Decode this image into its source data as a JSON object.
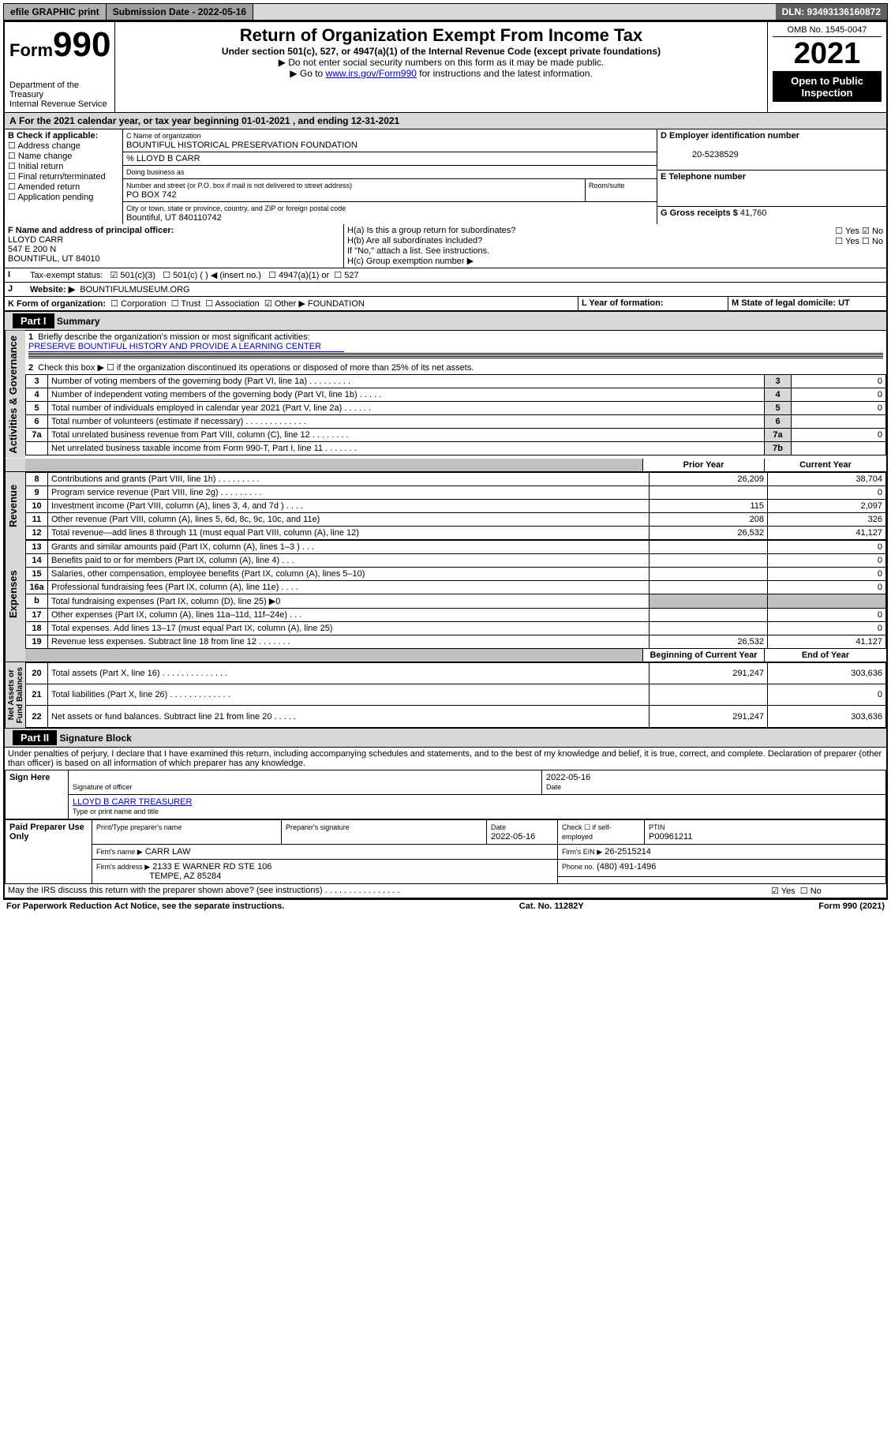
{
  "topbar": {
    "efile": "efile GRAPHIC print",
    "subdate_lbl": "Submission Date - 2022-05-16",
    "dln": "DLN: 93493136160872"
  },
  "header": {
    "form_prefix": "Form",
    "form_num": "990",
    "dept": "Department of the Treasury",
    "irs": "Internal Revenue Service",
    "title": "Return of Organization Exempt From Income Tax",
    "sub1": "Under section 501(c), 527, or 4947(a)(1) of the Internal Revenue Code (except private foundations)",
    "sub2": "Do not enter social security numbers on this form as it may be made public.",
    "sub3_pre": "Go to ",
    "sub3_link": "www.irs.gov/Form990",
    "sub3_post": " for instructions and the latest information.",
    "omb": "OMB No. 1545-0047",
    "year": "2021",
    "open": "Open to Public Inspection"
  },
  "A": {
    "text": "For the 2021 calendar year, or tax year beginning 01-01-2021   , and ending 12-31-2021"
  },
  "B": {
    "label": "B Check if applicable:",
    "opts": [
      "Address change",
      "Name change",
      "Initial return",
      "Final return/terminated",
      "Amended return",
      "Application pending"
    ]
  },
  "C": {
    "name_lbl": "C Name of organization",
    "name": "BOUNTIFUL HISTORICAL PRESERVATION FOUNDATION",
    "pct": "% LLOYD B CARR",
    "dba_lbl": "Doing business as",
    "addr_lbl": "Number and street (or P.O. box if mail is not delivered to street address)",
    "room_lbl": "Room/suite",
    "addr": "PO BOX 742",
    "city_lbl": "City or town, state or province, country, and ZIP or foreign postal code",
    "city": "Bountiful, UT  840110742"
  },
  "D": {
    "lbl": "D Employer identification number",
    "val": "20-5238529"
  },
  "E": {
    "lbl": "E Telephone number"
  },
  "G": {
    "lbl": "G Gross receipts $",
    "val": "41,760"
  },
  "F": {
    "lbl": "F Name and address of principal officer:",
    "name": "LLOYD CARR",
    "addr1": "547 E 200 N",
    "addr2": "BOUNTIFUL, UT  84010"
  },
  "H": {
    "a": "H(a)  Is this a group return for subordinates?",
    "b": "H(b)  Are all subordinates included?",
    "b_note": "If \"No,\" attach a list. See instructions.",
    "c": "H(c)  Group exemption number ▶",
    "yes": "Yes",
    "no": "No"
  },
  "I": {
    "lbl": "Tax-exempt status:",
    "c3": "501(c)(3)",
    "c": "501(c) (  ) ◀ (insert no.)",
    "a4947": "4947(a)(1) or",
    "s527": "527"
  },
  "J": {
    "lbl": "Website: ▶",
    "val": "BOUNTIFULMUSEUM.ORG"
  },
  "K": {
    "lbl": "K Form of organization:",
    "corp": "Corporation",
    "trust": "Trust",
    "assoc": "Association",
    "other": "Other ▶",
    "other_val": "FOUNDATION"
  },
  "L": {
    "lbl": "L Year of formation:"
  },
  "M": {
    "lbl": "M State of legal domicile: UT"
  },
  "part1": {
    "hdr": "Part I",
    "title": "Summary"
  },
  "gov": {
    "l1": "Briefly describe the organization's mission or most significant activities:",
    "l1v": "PRESERVE BOUNTIFUL HISTORY AND PROVIDE A LEARNING CENTER",
    "l2": "Check this box ▶ ☐  if the organization discontinued its operations or disposed of more than 25% of its net assets.",
    "l3": "Number of voting members of the governing body (Part VI, line 1a)   .   .   .   .   .   .   .   .   .",
    "l4": "Number of independent voting members of the governing body (Part VI, line 1b)  .   .   .   .   .",
    "l5": "Total number of individuals employed in calendar year 2021 (Part V, line 2a)  .   .   .   .   .   .",
    "l6": "Total number of volunteers (estimate if necessary)   .   .   .   .   .   .   .   .   .   .   .   .   .",
    "l7a": "Total unrelated business revenue from Part VIII, column (C), line 12  .   .   .   .   .   .   .   .",
    "l7b": "Net unrelated business taxable income from Form 990-T, Part I, line 11  .   .   .   .   .   .   .",
    "v3": "0",
    "v4": "0",
    "v5": "0",
    "v6": "",
    "v7a": "0",
    "v7b": ""
  },
  "revexp": {
    "hdr_prior": "Prior Year",
    "hdr_curr": "Current Year",
    "hdr_beg": "Beginning of Current Year",
    "hdr_end": "End of Year",
    "rows": [
      {
        "n": "8",
        "t": "Contributions and grants (Part VIII, line 1h)   .   .   .   .   .   .   .   .   .",
        "p": "26,209",
        "c": "38,704"
      },
      {
        "n": "9",
        "t": "Program service revenue (Part VIII, line 2g)   .   .   .   .   .   .   .   .   .",
        "p": "",
        "c": "0"
      },
      {
        "n": "10",
        "t": "Investment income (Part VIII, column (A), lines 3, 4, and 7d )   .   .   .   .",
        "p": "115",
        "c": "2,097"
      },
      {
        "n": "11",
        "t": "Other revenue (Part VIII, column (A), lines 5, 6d, 8c, 9c, 10c, and 11e)",
        "p": "208",
        "c": "326"
      },
      {
        "n": "12",
        "t": "Total revenue—add lines 8 through 11 (must equal Part VIII, column (A), line 12)",
        "p": "26,532",
        "c": "41,127"
      },
      {
        "n": "13",
        "t": "Grants and similar amounts paid (Part IX, column (A), lines 1–3 )   .   .   .",
        "p": "",
        "c": "0"
      },
      {
        "n": "14",
        "t": "Benefits paid to or for members (Part IX, column (A), line 4)   .   .   .",
        "p": "",
        "c": "0"
      },
      {
        "n": "15",
        "t": "Salaries, other compensation, employee benefits (Part IX, column (A), lines 5–10)",
        "p": "",
        "c": "0"
      },
      {
        "n": "16a",
        "t": "Professional fundraising fees (Part IX, column (A), line 11e)   .   .   .   .",
        "p": "",
        "c": "0"
      },
      {
        "n": "b",
        "t": "Total fundraising expenses (Part IX, column (D), line 25) ▶0",
        "p": "grey",
        "c": "grey"
      },
      {
        "n": "17",
        "t": "Other expenses (Part IX, column (A), lines 11a–11d, 11f–24e)   .   .   .",
        "p": "",
        "c": "0"
      },
      {
        "n": "18",
        "t": "Total expenses. Add lines 13–17 (must equal Part IX, column (A), line 25)",
        "p": "",
        "c": "0"
      },
      {
        "n": "19",
        "t": "Revenue less expenses. Subtract line 18 from line 12   .   .   .   .   .   .   .",
        "p": "26,532",
        "c": "41,127"
      }
    ],
    "net": [
      {
        "n": "20",
        "t": "Total assets (Part X, line 16)  .   .   .   .   .   .   .   .   .   .   .   .   .   .",
        "p": "291,247",
        "c": "303,636"
      },
      {
        "n": "21",
        "t": "Total liabilities (Part X, line 26)  .   .   .   .   .   .   .   .   .   .   .   .   .",
        "p": "",
        "c": "0"
      },
      {
        "n": "22",
        "t": "Net assets or fund balances. Subtract line 21 from line 20   .   .   .   .   .",
        "p": "291,247",
        "c": "303,636"
      }
    ]
  },
  "vtabs": {
    "gov": "Activities & Governance",
    "rev": "Revenue",
    "exp": "Expenses",
    "net": "Net Assets or\nFund Balances"
  },
  "part2": {
    "hdr": "Part II",
    "title": "Signature Block",
    "decl": "Under penalties of perjury, I declare that I have examined this return, including accompanying schedules and statements, and to the best of my knowledge and belief, it is true, correct, and complete. Declaration of preparer (other than officer) is based on all information of which preparer has any knowledge."
  },
  "sign": {
    "here": "Sign Here",
    "sig_lbl": "Signature of officer",
    "date_lbl": "Date",
    "date": "2022-05-16",
    "name": "LLOYD B CARR  TREASURER",
    "name_lbl": "Type or print name and title"
  },
  "paid": {
    "lbl": "Paid Preparer Use Only",
    "h1": "Print/Type preparer's name",
    "h2": "Preparer's signature",
    "h3": "Date",
    "h3v": "2022-05-16",
    "h4": "Check ☐ if self-employed",
    "h5": "PTIN",
    "h5v": "P00961211",
    "firm_lbl": "Firm's name     ▶",
    "firm": "CARR LAW",
    "ein_lbl": "Firm's EIN ▶",
    "ein": "26-2515214",
    "addr_lbl": "Firm's address ▶",
    "addr": "2133 E WARNER RD STE 106",
    "addr2": "TEMPE, AZ  85284",
    "phone_lbl": "Phone no.",
    "phone": "(480) 491-1496"
  },
  "discuss": "May the IRS discuss this return with the preparer shown above? (see instructions)   .   .   .   .   .   .   .   .   .   .   .   .   .   .   .   .",
  "footer": {
    "pra": "For Paperwork Reduction Act Notice, see the separate instructions.",
    "cat": "Cat. No. 11282Y",
    "form": "Form 990 (2021)"
  }
}
